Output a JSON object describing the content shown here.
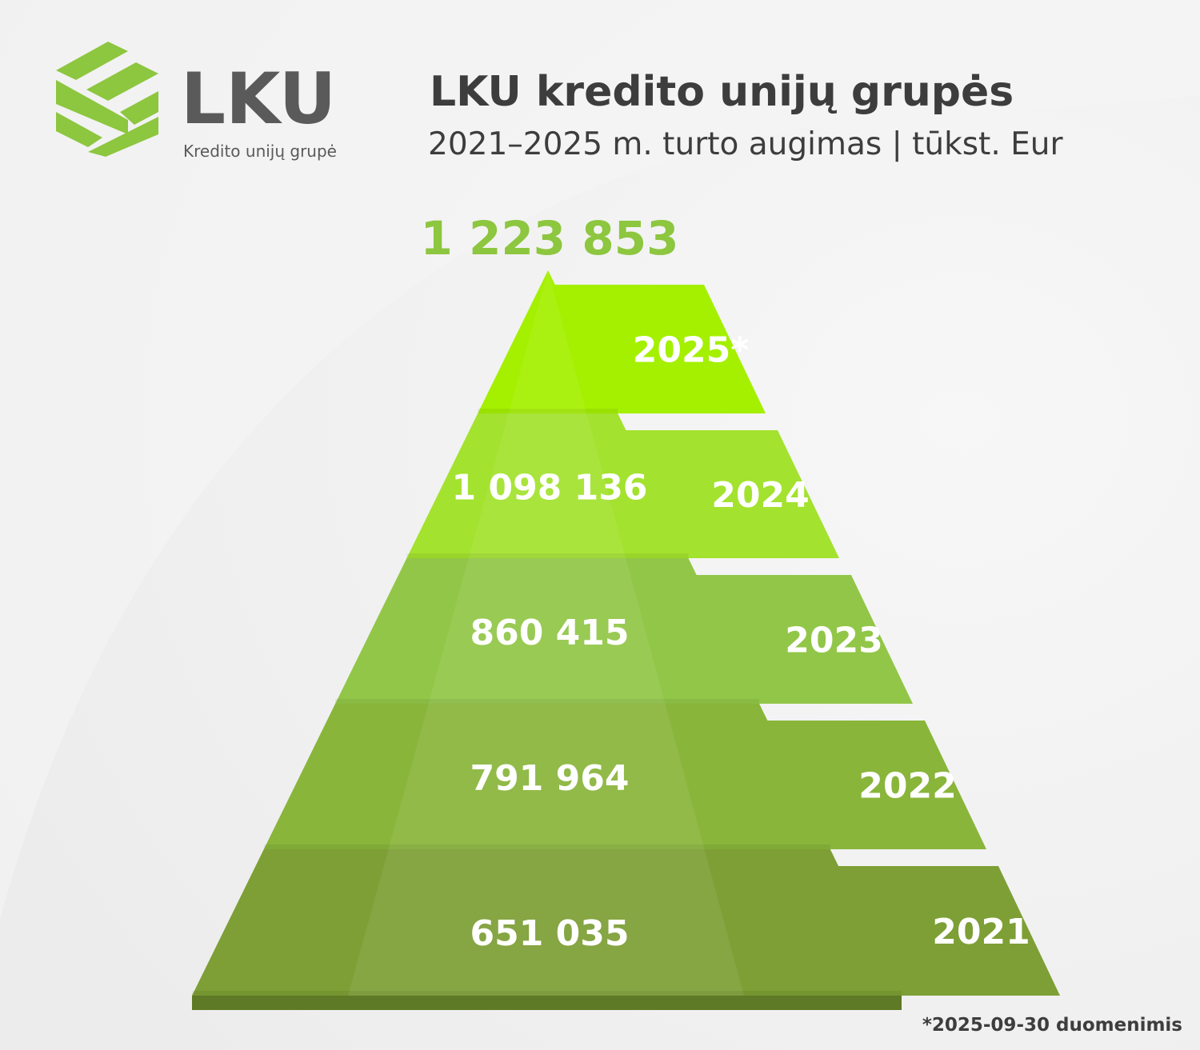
{
  "logo": {
    "wordmark": "LKU",
    "tagline": "Kredito unijų grupė",
    "brand_color": "#8dc63f",
    "text_color": "#5a5a5a"
  },
  "header": {
    "title": "LKU kredito unijų grupės",
    "subtitle": "2021–2025 m. turto augimas | tūkst. Eur"
  },
  "footnote": "*2025-09-30 duomenimis",
  "chart_data": {
    "type": "pyramid",
    "title": "LKU kredito unijų grupės",
    "subtitle": "2021–2025 m. turto augimas | tūkst. Eur",
    "unit": "tūkst. Eur",
    "categories": [
      "2025*",
      "2024",
      "2023",
      "2022",
      "2021"
    ],
    "values": [
      1223853,
      1098136,
      860415,
      791964,
      651035
    ],
    "value_labels": [
      "1 223 853",
      "1 098 136",
      "860 415",
      "791 964",
      "651 035"
    ],
    "colors": [
      "#a4f000",
      "#a3e22e",
      "#92c648",
      "#89b53b",
      "#7d9f35"
    ]
  }
}
